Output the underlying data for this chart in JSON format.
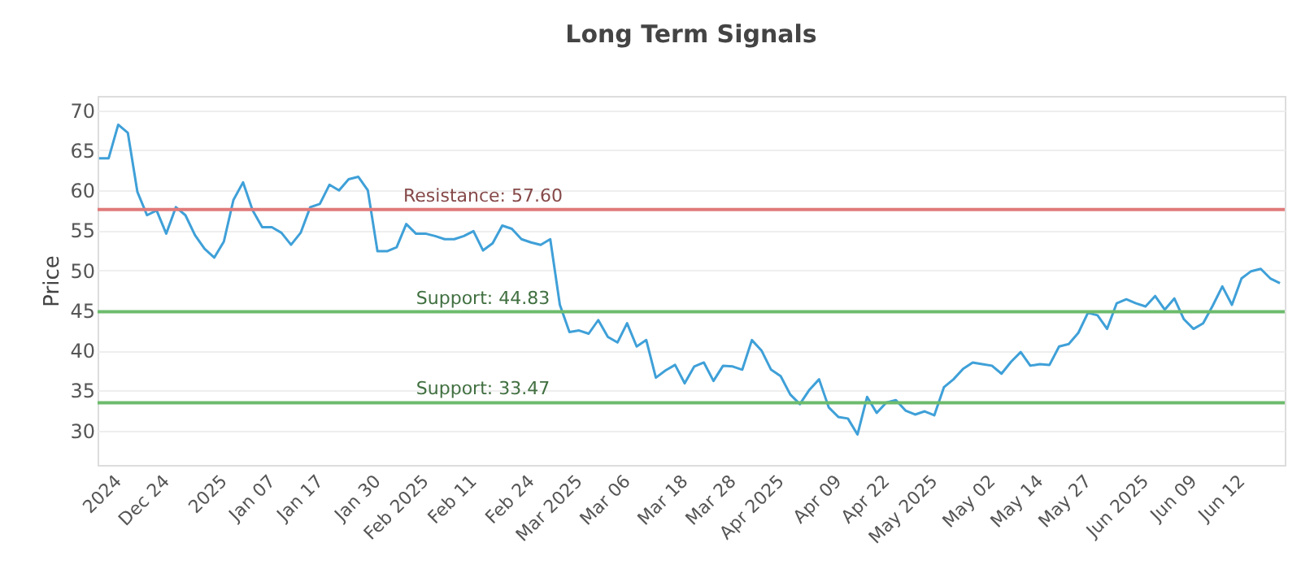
{
  "chart_data": {
    "type": "line",
    "title": "Long Term Signals",
    "ylabel": "Price",
    "categories": [
      null,
      null,
      "2024",
      null,
      null,
      null,
      null,
      "Dec 24",
      null,
      null,
      null,
      null,
      null,
      "2025",
      null,
      null,
      null,
      null,
      "Jan 07",
      null,
      null,
      null,
      null,
      "Jan 17",
      null,
      null,
      null,
      null,
      null,
      "Jan 30",
      null,
      null,
      null,
      null,
      "Feb 2025",
      null,
      null,
      null,
      null,
      "Feb 11",
      null,
      null,
      null,
      null,
      null,
      "Feb 24",
      null,
      null,
      null,
      null,
      "Mar 2025",
      null,
      null,
      null,
      null,
      "Mar 06",
      null,
      null,
      null,
      null,
      null,
      "Mar 18",
      null,
      null,
      null,
      null,
      "Mar 28",
      null,
      null,
      null,
      null,
      "Apr 2025",
      null,
      null,
      null,
      null,
      null,
      "Apr 09",
      null,
      null,
      null,
      null,
      "Apr 22",
      null,
      null,
      null,
      null,
      "May 2025",
      null,
      null,
      null,
      null,
      null,
      "May 02",
      null,
      null,
      null,
      null,
      "May 14",
      null,
      null,
      null,
      null,
      "May 27",
      null,
      null,
      null,
      null,
      null,
      "Jun 2025",
      null,
      null,
      null,
      null,
      "Jun 09",
      null,
      null,
      null,
      null,
      "Jun 12",
      null,
      null,
      null,
      null
    ],
    "series": [
      {
        "color": "#3fa0d8",
        "values": [
          64.0,
          64.0,
          68.2,
          67.2,
          59.8,
          56.9,
          57.5,
          54.6,
          57.9,
          56.9,
          54.4,
          52.7,
          51.6,
          53.6,
          58.8,
          61.0,
          57.5,
          55.4,
          55.4,
          54.7,
          53.2,
          54.7,
          57.9,
          58.3,
          60.7,
          60.0,
          61.4,
          61.7,
          60.0,
          52.4,
          52.4,
          52.9,
          55.8,
          54.6,
          54.6,
          54.3,
          53.9,
          53.9,
          54.3,
          54.9,
          52.5,
          53.4,
          55.6,
          55.2,
          53.9,
          53.5,
          53.2,
          53.9,
          45.7,
          42.3,
          42.5,
          42.1,
          43.8,
          41.7,
          41.0,
          43.4,
          40.5,
          41.3,
          36.6,
          37.5,
          38.2,
          35.9,
          38.0,
          38.5,
          36.2,
          38.1,
          38.0,
          37.6,
          41.3,
          40.0,
          37.6,
          36.8,
          34.5,
          33.3,
          35.1,
          36.4,
          32.9,
          31.7,
          31.5,
          29.5,
          34.2,
          32.2,
          33.5,
          33.8,
          32.5,
          32.0,
          32.4,
          31.9,
          35.4,
          36.4,
          37.7,
          38.5,
          38.3,
          38.1,
          37.1,
          38.6,
          39.8,
          38.1,
          38.3,
          38.2,
          40.5,
          40.8,
          42.2,
          44.7,
          44.4,
          42.7,
          45.9,
          46.4,
          45.9,
          45.5,
          46.8,
          45.1,
          46.5,
          43.9,
          42.7,
          43.4,
          45.6,
          48.0,
          45.7,
          49.0,
          49.9,
          50.2,
          49.0,
          48.4
        ]
      }
    ],
    "ylim": [
      25.7,
      71.8
    ],
    "yticks": [
      30,
      35,
      40,
      45,
      50,
      55,
      60,
      65,
      70
    ],
    "grid": "y",
    "ref_lines": [
      {
        "axis": "y",
        "value": 57.6,
        "label": "Resistance: 57.60",
        "color": "#e07a7a"
      },
      {
        "axis": "y",
        "value": 44.83,
        "label": "Support: 44.83",
        "color": "#6dbb6d"
      },
      {
        "axis": "y",
        "value": 33.47,
        "label": "Support: 33.47",
        "color": "#6dbb6d"
      }
    ]
  }
}
